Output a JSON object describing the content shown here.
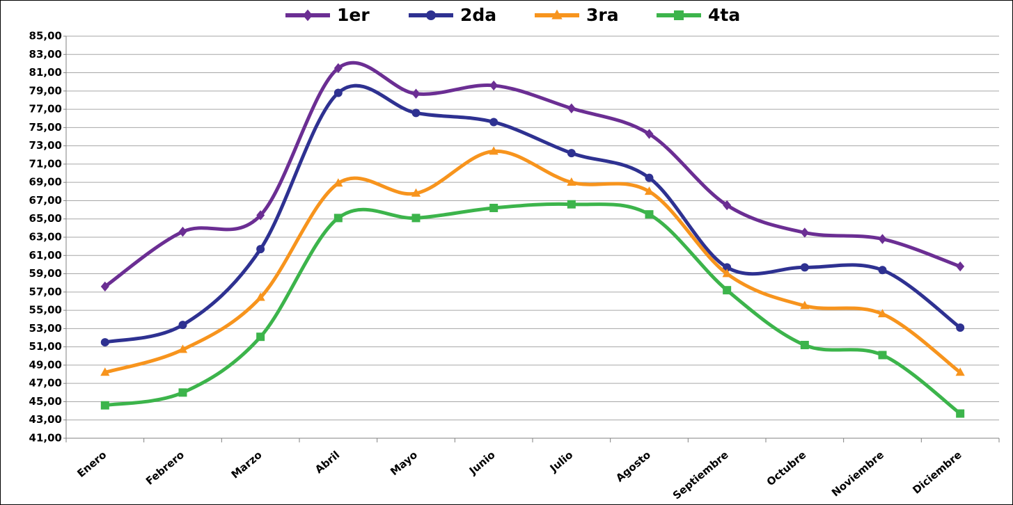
{
  "chart_data": {
    "type": "line",
    "categories": [
      "Enero",
      "Febrero",
      "Marzo",
      "Abril",
      "Mayo",
      "Junio",
      "Julio",
      "Agosto",
      "Septiembre",
      "Octubre",
      "Noviembre",
      "Diciembre"
    ],
    "series": [
      {
        "name": "1er",
        "color": "#6b2e93",
        "marker": "diamond",
        "values": [
          57.6,
          63.6,
          65.4,
          81.5,
          78.7,
          79.6,
          77.1,
          74.3,
          66.5,
          63.5,
          62.8,
          59.8
        ]
      },
      {
        "name": "2da",
        "color": "#2e3191",
        "marker": "circle",
        "values": [
          51.5,
          53.4,
          61.7,
          78.8,
          76.6,
          75.6,
          72.2,
          69.5,
          59.7,
          59.7,
          59.4,
          53.1
        ]
      },
      {
        "name": "3ra",
        "color": "#f7941d",
        "marker": "triangle",
        "values": [
          48.2,
          50.7,
          56.4,
          68.9,
          67.8,
          72.4,
          69.0,
          68.0,
          59.0,
          55.5,
          54.6,
          48.2
        ]
      },
      {
        "name": "4ta",
        "color": "#3cb44b",
        "marker": "square",
        "values": [
          44.6,
          46.0,
          52.1,
          65.1,
          65.1,
          66.2,
          66.6,
          65.5,
          57.2,
          51.2,
          50.1,
          43.7
        ]
      }
    ],
    "ylim": [
      41,
      85
    ],
    "yticks": [
      {
        "value": 41,
        "label": "41,00"
      },
      {
        "value": 43,
        "label": "43,00"
      },
      {
        "value": 45,
        "label": "45,00"
      },
      {
        "value": 47,
        "label": "47,00"
      },
      {
        "value": 49,
        "label": "49,00"
      },
      {
        "value": 51,
        "label": "51,00"
      },
      {
        "value": 53,
        "label": "53,00"
      },
      {
        "value": 55,
        "label": "55,00"
      },
      {
        "value": 57,
        "label": "57,00"
      },
      {
        "value": 59,
        "label": "59,00"
      },
      {
        "value": 61,
        "label": "61,00"
      },
      {
        "value": 63,
        "label": "63,00"
      },
      {
        "value": 65,
        "label": "65,00"
      },
      {
        "value": 67,
        "label": "67,00"
      },
      {
        "value": 69,
        "label": "69,00"
      },
      {
        "value": 71,
        "label": "71,00"
      },
      {
        "value": 73,
        "label": "73,00"
      },
      {
        "value": 75,
        "label": "75,00"
      },
      {
        "value": 77,
        "label": "77,00"
      },
      {
        "value": 79,
        "label": "79,00"
      },
      {
        "value": 81,
        "label": "81,00"
      },
      {
        "value": 83,
        "label": "83,00"
      },
      {
        "value": 85,
        "label": "85,00"
      }
    ],
    "grid": true,
    "legend": "top",
    "smooth": true
  }
}
